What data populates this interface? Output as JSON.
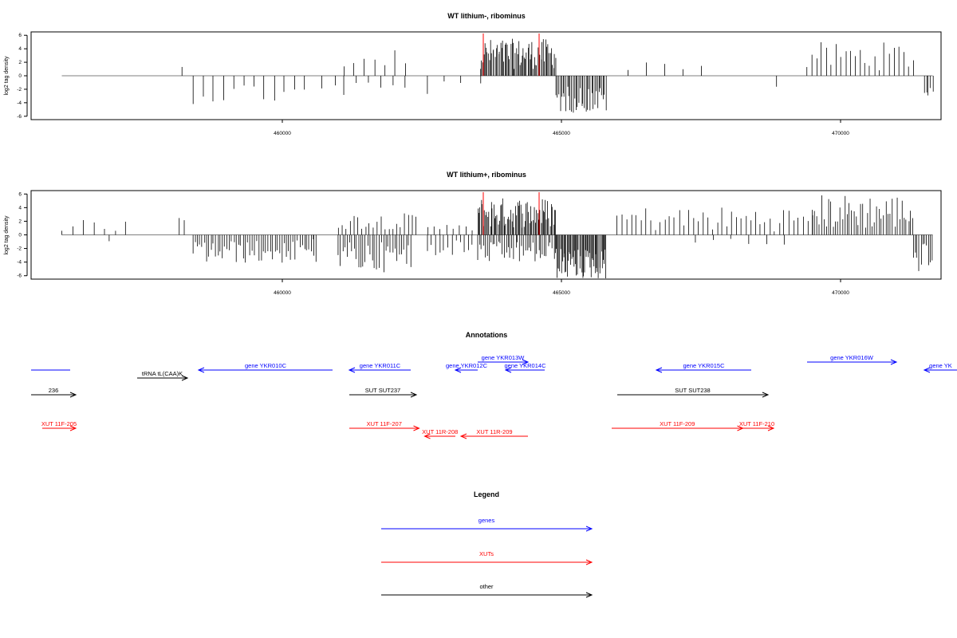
{
  "chart_data": [
    {
      "type": "bar",
      "title": "WT lithium-, ribominus",
      "ylabel": "log2 tag density",
      "xlim": [
        455500,
        471800
      ],
      "ylim": [
        -6.5,
        6.5
      ],
      "xticks": [
        460000,
        465000,
        470000
      ],
      "yticks": [
        -6,
        -4,
        -2,
        0,
        2,
        4,
        6
      ],
      "marker_lines": [
        {
          "x": 463600,
          "color": "#ff0000"
        },
        {
          "x": 464600,
          "color": "#ff0000"
        }
      ],
      "regions": [
        {
          "from": 458200,
          "to": 458250,
          "dir": "up",
          "min": 1,
          "max": 2,
          "density": 1
        },
        {
          "from": 458400,
          "to": 460400,
          "dir": "down",
          "min": 0.8,
          "max": 4.2,
          "density": 0.6
        },
        {
          "from": 460700,
          "to": 460950,
          "dir": "down",
          "min": 1,
          "max": 2,
          "density": 0.6
        },
        {
          "from": 461100,
          "to": 462200,
          "dir": "up",
          "min": 0.8,
          "max": 4.2,
          "density": 0.6
        },
        {
          "from": 461100,
          "to": 462200,
          "dir": "down",
          "min": 0.8,
          "max": 3.2,
          "density": 0.5
        },
        {
          "from": 462600,
          "to": 463200,
          "dir": "down",
          "min": 0.8,
          "max": 2.8,
          "density": 0.5
        },
        {
          "from": 463550,
          "to": 464900,
          "dir": "up",
          "min": 1,
          "max": 5.5,
          "density": 5
        },
        {
          "from": 463550,
          "to": 463600,
          "dir": "down",
          "min": 0.5,
          "max": 1.5,
          "density": 1
        },
        {
          "from": 464900,
          "to": 465800,
          "dir": "down",
          "min": 1.5,
          "max": 5.5,
          "density": 4
        },
        {
          "from": 466200,
          "to": 467500,
          "dir": "up",
          "min": 0.8,
          "max": 2.3,
          "density": 0.4
        },
        {
          "from": 468850,
          "to": 468900,
          "dir": "down",
          "min": 1,
          "max": 2,
          "density": 1
        },
        {
          "from": 469400,
          "to": 471300,
          "dir": "up",
          "min": 0.8,
          "max": 5,
          "density": 1.2
        },
        {
          "from": 471500,
          "to": 471650,
          "dir": "down",
          "min": 1.5,
          "max": 3.6,
          "density": 3
        }
      ]
    },
    {
      "type": "bar",
      "title": "WT lithium+, ribominus",
      "ylabel": "log2 tag density",
      "xlim": [
        455500,
        471800
      ],
      "ylim": [
        -6.5,
        6.5
      ],
      "xticks": [
        460000,
        465000,
        470000
      ],
      "yticks": [
        -6,
        -4,
        -2,
        0,
        2,
        4,
        6
      ],
      "marker_lines": [
        {
          "x": 463600,
          "color": "#ff0000"
        },
        {
          "x": 464600,
          "color": "#ff0000"
        }
      ],
      "regions": [
        {
          "from": 456050,
          "to": 457200,
          "dir": "up",
          "min": 0.5,
          "max": 2.2,
          "density": 0.6
        },
        {
          "from": 456900,
          "to": 457000,
          "dir": "down",
          "min": 0.5,
          "max": 1,
          "density": 1
        },
        {
          "from": 458150,
          "to": 458250,
          "dir": "up",
          "min": 2,
          "max": 3.8,
          "density": 1.5
        },
        {
          "from": 458400,
          "to": 460600,
          "dir": "down",
          "min": 0.8,
          "max": 4.2,
          "density": 2.5
        },
        {
          "from": 460550,
          "to": 460650,
          "dir": "down",
          "min": 0.5,
          "max": 1,
          "density": 1
        },
        {
          "from": 461000,
          "to": 462400,
          "dir": "up",
          "min": 0.8,
          "max": 3.2,
          "density": 1.5
        },
        {
          "from": 461000,
          "to": 462300,
          "dir": "down",
          "min": 1,
          "max": 5.5,
          "density": 2.5
        },
        {
          "from": 462600,
          "to": 463400,
          "dir": "down",
          "min": 0.8,
          "max": 3,
          "density": 1.5
        },
        {
          "from": 462600,
          "to": 463400,
          "dir": "up",
          "min": 0.5,
          "max": 1.5,
          "density": 1
        },
        {
          "from": 463500,
          "to": 464900,
          "dir": "up",
          "min": 1,
          "max": 5.5,
          "density": 5
        },
        {
          "from": 463500,
          "to": 464900,
          "dir": "down",
          "min": 1,
          "max": 4.2,
          "density": 3
        },
        {
          "from": 464900,
          "to": 465800,
          "dir": "down",
          "min": 2,
          "max": 6.5,
          "density": 6
        },
        {
          "from": 466000,
          "to": 469500,
          "dir": "up",
          "min": 0.5,
          "max": 4.2,
          "density": 1.2
        },
        {
          "from": 467400,
          "to": 469000,
          "dir": "down",
          "min": 0.5,
          "max": 1.5,
          "density": 0.4
        },
        {
          "from": 469500,
          "to": 471300,
          "dir": "up",
          "min": 0.8,
          "max": 6,
          "density": 2.5
        },
        {
          "from": 471300,
          "to": 471650,
          "dir": "down",
          "min": 1,
          "max": 5.5,
          "density": 3
        }
      ]
    }
  ],
  "annotations": {
    "title": "Annotations",
    "rows": [
      {
        "name": "genes",
        "color": "#0000ff",
        "items": [
          {
            "label": "",
            "dir": "none",
            "from": 455500,
            "to": 456200
          },
          {
            "label": "gene YKR010C",
            "dir": "left",
            "from": 458500,
            "to": 460900
          },
          {
            "label": "gene YKR011C",
            "dir": "left",
            "from": 461200,
            "to": 462300
          },
          {
            "label": "gene YKR012C",
            "dir": "left",
            "from": 463100,
            "to": 463500
          },
          {
            "label": "gene YKR013W",
            "dir": "right",
            "from": 463500,
            "to": 464400
          },
          {
            "label": "gene YKR014C",
            "dir": "left",
            "from": 464000,
            "to": 464700
          },
          {
            "label": "gene YKR015C",
            "dir": "left",
            "from": 466700,
            "to": 468400
          },
          {
            "label": "gene YKR016W",
            "dir": "right",
            "from": 469400,
            "to": 471000
          },
          {
            "label": "gene YK",
            "dir": "left",
            "from": 471500,
            "to": 472300
          }
        ]
      },
      {
        "name": "other",
        "color": "#000000",
        "items": [
          {
            "label": "tRNA tL(CAA)K",
            "dir": "right",
            "from": 457400,
            "to": 458300
          },
          {
            "label": "236",
            "dir": "right",
            "from": 455500,
            "to": 456300
          },
          {
            "label": "SUT SUT237",
            "dir": "right",
            "from": 461200,
            "to": 462400
          },
          {
            "label": "SUT SUT238",
            "dir": "right",
            "from": 466000,
            "to": 468700
          }
        ]
      },
      {
        "name": "XUTs",
        "color": "#ff0000",
        "items": [
          {
            "label": "XUT 11F-205",
            "dir": "right",
            "from": 455700,
            "to": 456300
          },
          {
            "label": "XUT 11F-207",
            "dir": "right",
            "from": 461200,
            "to": 462450
          },
          {
            "label": "XUT 11R-208",
            "dir": "left",
            "from": 462550,
            "to": 463100
          },
          {
            "label": "XUT 11R-209",
            "dir": "left",
            "from": 463200,
            "to": 464400
          },
          {
            "label": "XUT 11F-209",
            "dir": "right",
            "from": 465900,
            "to": 468250
          },
          {
            "label": "XUT 11F-210",
            "dir": "right",
            "from": 468200,
            "to": 468800
          }
        ]
      }
    ]
  },
  "legend": {
    "title": "Legend",
    "items": [
      {
        "label": "genes",
        "color": "#0000ff"
      },
      {
        "label": "XUTs",
        "color": "#ff0000"
      },
      {
        "label": "other",
        "color": "#000000"
      }
    ]
  }
}
